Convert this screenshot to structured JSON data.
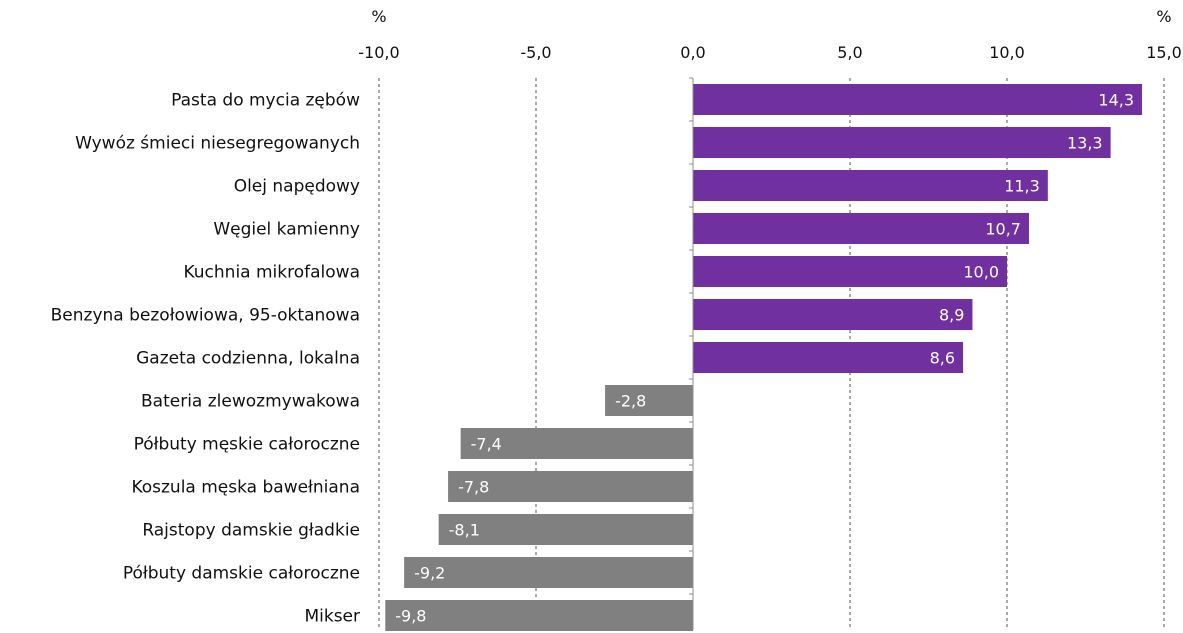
{
  "chart_data": {
    "type": "bar",
    "orientation": "horizontal",
    "unit_left": "%",
    "unit_right": "%",
    "xlim": [
      -10,
      15
    ],
    "xticks": [
      -10,
      -5,
      0,
      5,
      10,
      15
    ],
    "xtick_labels": [
      "-10,0",
      "-5,0",
      "0,0",
      "5,0",
      "10,0",
      "15,0"
    ],
    "grid": true,
    "categories": [
      "Pasta do mycia zębów",
      "Wywóz śmieci niesegregowanych",
      "Olej napędowy",
      "Węgiel kamienny",
      "Kuchnia mikrofalowa",
      "Benzyna bezołowiowa, 95-oktanowa",
      "Gazeta codzienna, lokalna",
      "Bateria zlewozmywakowa",
      "Półbuty męskie całoroczne",
      "Koszula męska bawełniana",
      "Rajstopy damskie gładkie",
      "Półbuty damskie całoroczne",
      "Mikser"
    ],
    "values": [
      14.3,
      13.3,
      11.3,
      10.7,
      10.0,
      8.9,
      8.6,
      -2.8,
      -7.4,
      -7.8,
      -8.1,
      -9.2,
      -9.8
    ],
    "value_labels": [
      "14,3",
      "13,3",
      "11,3",
      "10,7",
      "10,0",
      "8,9",
      "8,6",
      "-2,8",
      "-7,4",
      "-7,8",
      "-8,1",
      "-9,2",
      "-9,8"
    ],
    "colors": {
      "positive": "#7030a0",
      "negative": "#808080"
    }
  }
}
